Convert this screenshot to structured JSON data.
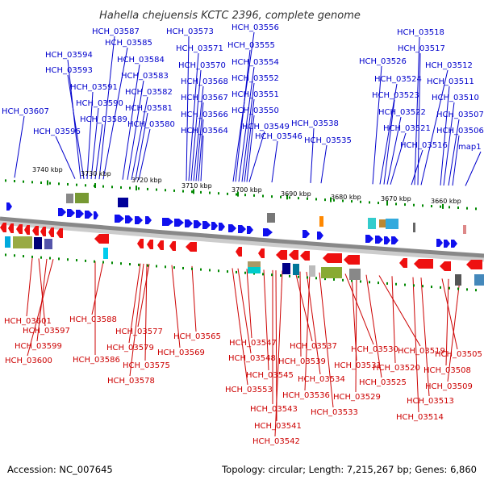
{
  "title": "Hahella chejuensis KCTC 2396, complete genome",
  "footer": {
    "accession": "Accession: NC_007645",
    "summary": "Topology: circular; Length: 7,215,267 bp; Genes: 6,860"
  },
  "colors": {
    "plus_label": "#0000cc",
    "minus_label": "#cc0000",
    "plus_gene": "#1010ee",
    "minus_gene": "#ee1010",
    "backbone": "#999999",
    "ticks": "#008800"
  },
  "scale": {
    "marks": [
      "3740 kbp",
      "3730 kbp",
      "3720 kbp",
      "3710 kbp",
      "3700 kbp",
      "3690 kbp",
      "3680 kbp",
      "3670 kbp",
      "3660 kbp"
    ]
  },
  "plus_strand_labels": [
    "HCH_03607",
    "HCH_03596",
    "HCH_03594",
    "HCH_03593",
    "HCH_03591",
    "HCH_03590",
    "HCH_03589",
    "HCH_03587",
    "HCH_03585",
    "HCH_03584",
    "HCH_03583",
    "HCH_03582",
    "HCH_03581",
    "HCH_03580",
    "HCH_03573",
    "HCH_03571",
    "HCH_03570",
    "HCH_03568",
    "HCH_03567",
    "HCH_03566",
    "HCH_03564",
    "HCH_03556",
    "HCH_03555",
    "HCH_03554",
    "HCH_03552",
    "HCH_03551",
    "HCH_03550",
    "HCH_03549",
    "HCH_03546",
    "HCH_03538",
    "HCH_03535",
    "HCH_03526",
    "HCH_03524",
    "HCH_03523",
    "HCH_03522",
    "HCH_03521",
    "HCH_03516",
    "HCH_03518",
    "HCH_03517",
    "HCH_03512",
    "HCH_03511",
    "HCH_03510",
    "HCH_03507",
    "HCH_03506",
    "map1"
  ],
  "minus_strand_labels": [
    "HCH_03601",
    "HCH_03597",
    "HCH_03599",
    "HCH_03600",
    "HCH_03588",
    "HCH_03586",
    "HCH_03577",
    "HCH_03579",
    "HCH_03575",
    "HCH_03578",
    "HCH_03565",
    "HCH_03569",
    "HCH_03547",
    "HCH_03548",
    "HCH_03553",
    "HCH_03545",
    "HCH_03543",
    "HCH_03541",
    "HCH_03542",
    "HCH_03537",
    "HCH_03539",
    "HCH_03534",
    "HCH_03536",
    "HCH_03533",
    "HCH_03530",
    "HCH_03531",
    "HCH_03529",
    "HCH_03525",
    "HCH_03519",
    "HCH_03520",
    "HCH_03514",
    "HCH_03513",
    "HCH_03505",
    "HCH_03508",
    "HCH_03509"
  ]
}
